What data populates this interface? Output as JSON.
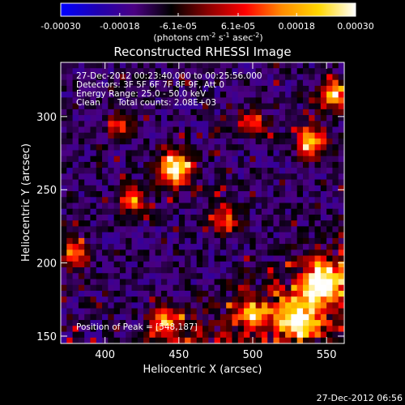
{
  "chart_data": {
    "type": "heatmap",
    "title": "Reconstructed RHESSI Image",
    "xlabel": "Heliocentric X (arcsec)",
    "ylabel": "Heliocentric Y (arcsec)",
    "xlim": [
      370,
      562
    ],
    "ylim": [
      145,
      337
    ],
    "x_ticks": [
      400,
      450,
      500,
      550
    ],
    "y_ticks": [
      150,
      200,
      250,
      300
    ],
    "colorbar": {
      "ticks": [
        "-0.00030",
        "-0.00018",
        "-6.1e-05",
        "6.1e-05",
        "0.00018",
        "0.00030"
      ],
      "tick_values": [
        -0.0003,
        -0.00018,
        -6.1e-05,
        6.1e-05,
        0.00018,
        0.0003
      ],
      "range": [
        -0.0003,
        0.0003
      ],
      "units_prefix": "(photons cm",
      "units_exp1": "-2",
      "units_mid": " s",
      "units_exp2": "-1",
      "units_mid2": " asec",
      "units_exp3": "-2",
      "units_suffix": ")",
      "colormap": [
        "#0000ff",
        "#2000b0",
        "#4b0082",
        "#000000",
        "#8b0000",
        "#ff0000",
        "#ff8c00",
        "#ffd700",
        "#ffffff"
      ]
    },
    "info_lines": [
      "27-Dec-2012 00:23:40.000 to 00:25:56.000",
      "Detectors: 3F 5F 6F 7F 8F 9F, Att 0",
      "Energy Range: 25.0 - 50.0 keV"
    ],
    "clean_label": "Clean",
    "total_counts": "Total counts: 2.08E+03",
    "peak_text": "Position of Peak = [548,187]",
    "bright_sources": [
      {
        "x": 447,
        "y": 264,
        "intensity": 0.95,
        "sigma": 8
      },
      {
        "x": 540,
        "y": 283,
        "intensity": 0.75,
        "sigma": 7
      },
      {
        "x": 548,
        "y": 187,
        "intensity": 1.0,
        "sigma": 9
      },
      {
        "x": 530,
        "y": 163,
        "intensity": 0.85,
        "sigma": 10
      },
      {
        "x": 555,
        "y": 315,
        "intensity": 0.7,
        "sigma": 7
      },
      {
        "x": 380,
        "y": 207,
        "intensity": 0.65,
        "sigma": 6
      },
      {
        "x": 418,
        "y": 243,
        "intensity": 0.6,
        "sigma": 6
      },
      {
        "x": 500,
        "y": 295,
        "intensity": 0.55,
        "sigma": 6
      },
      {
        "x": 440,
        "y": 160,
        "intensity": 0.55,
        "sigma": 7
      },
      {
        "x": 500,
        "y": 165,
        "intensity": 0.5,
        "sigma": 7
      },
      {
        "x": 410,
        "y": 293,
        "intensity": 0.45,
        "sigma": 6
      },
      {
        "x": 482,
        "y": 230,
        "intensity": 0.5,
        "sigma": 6
      }
    ]
  },
  "footer_timestamp": "27-Dec-2012 06:56"
}
